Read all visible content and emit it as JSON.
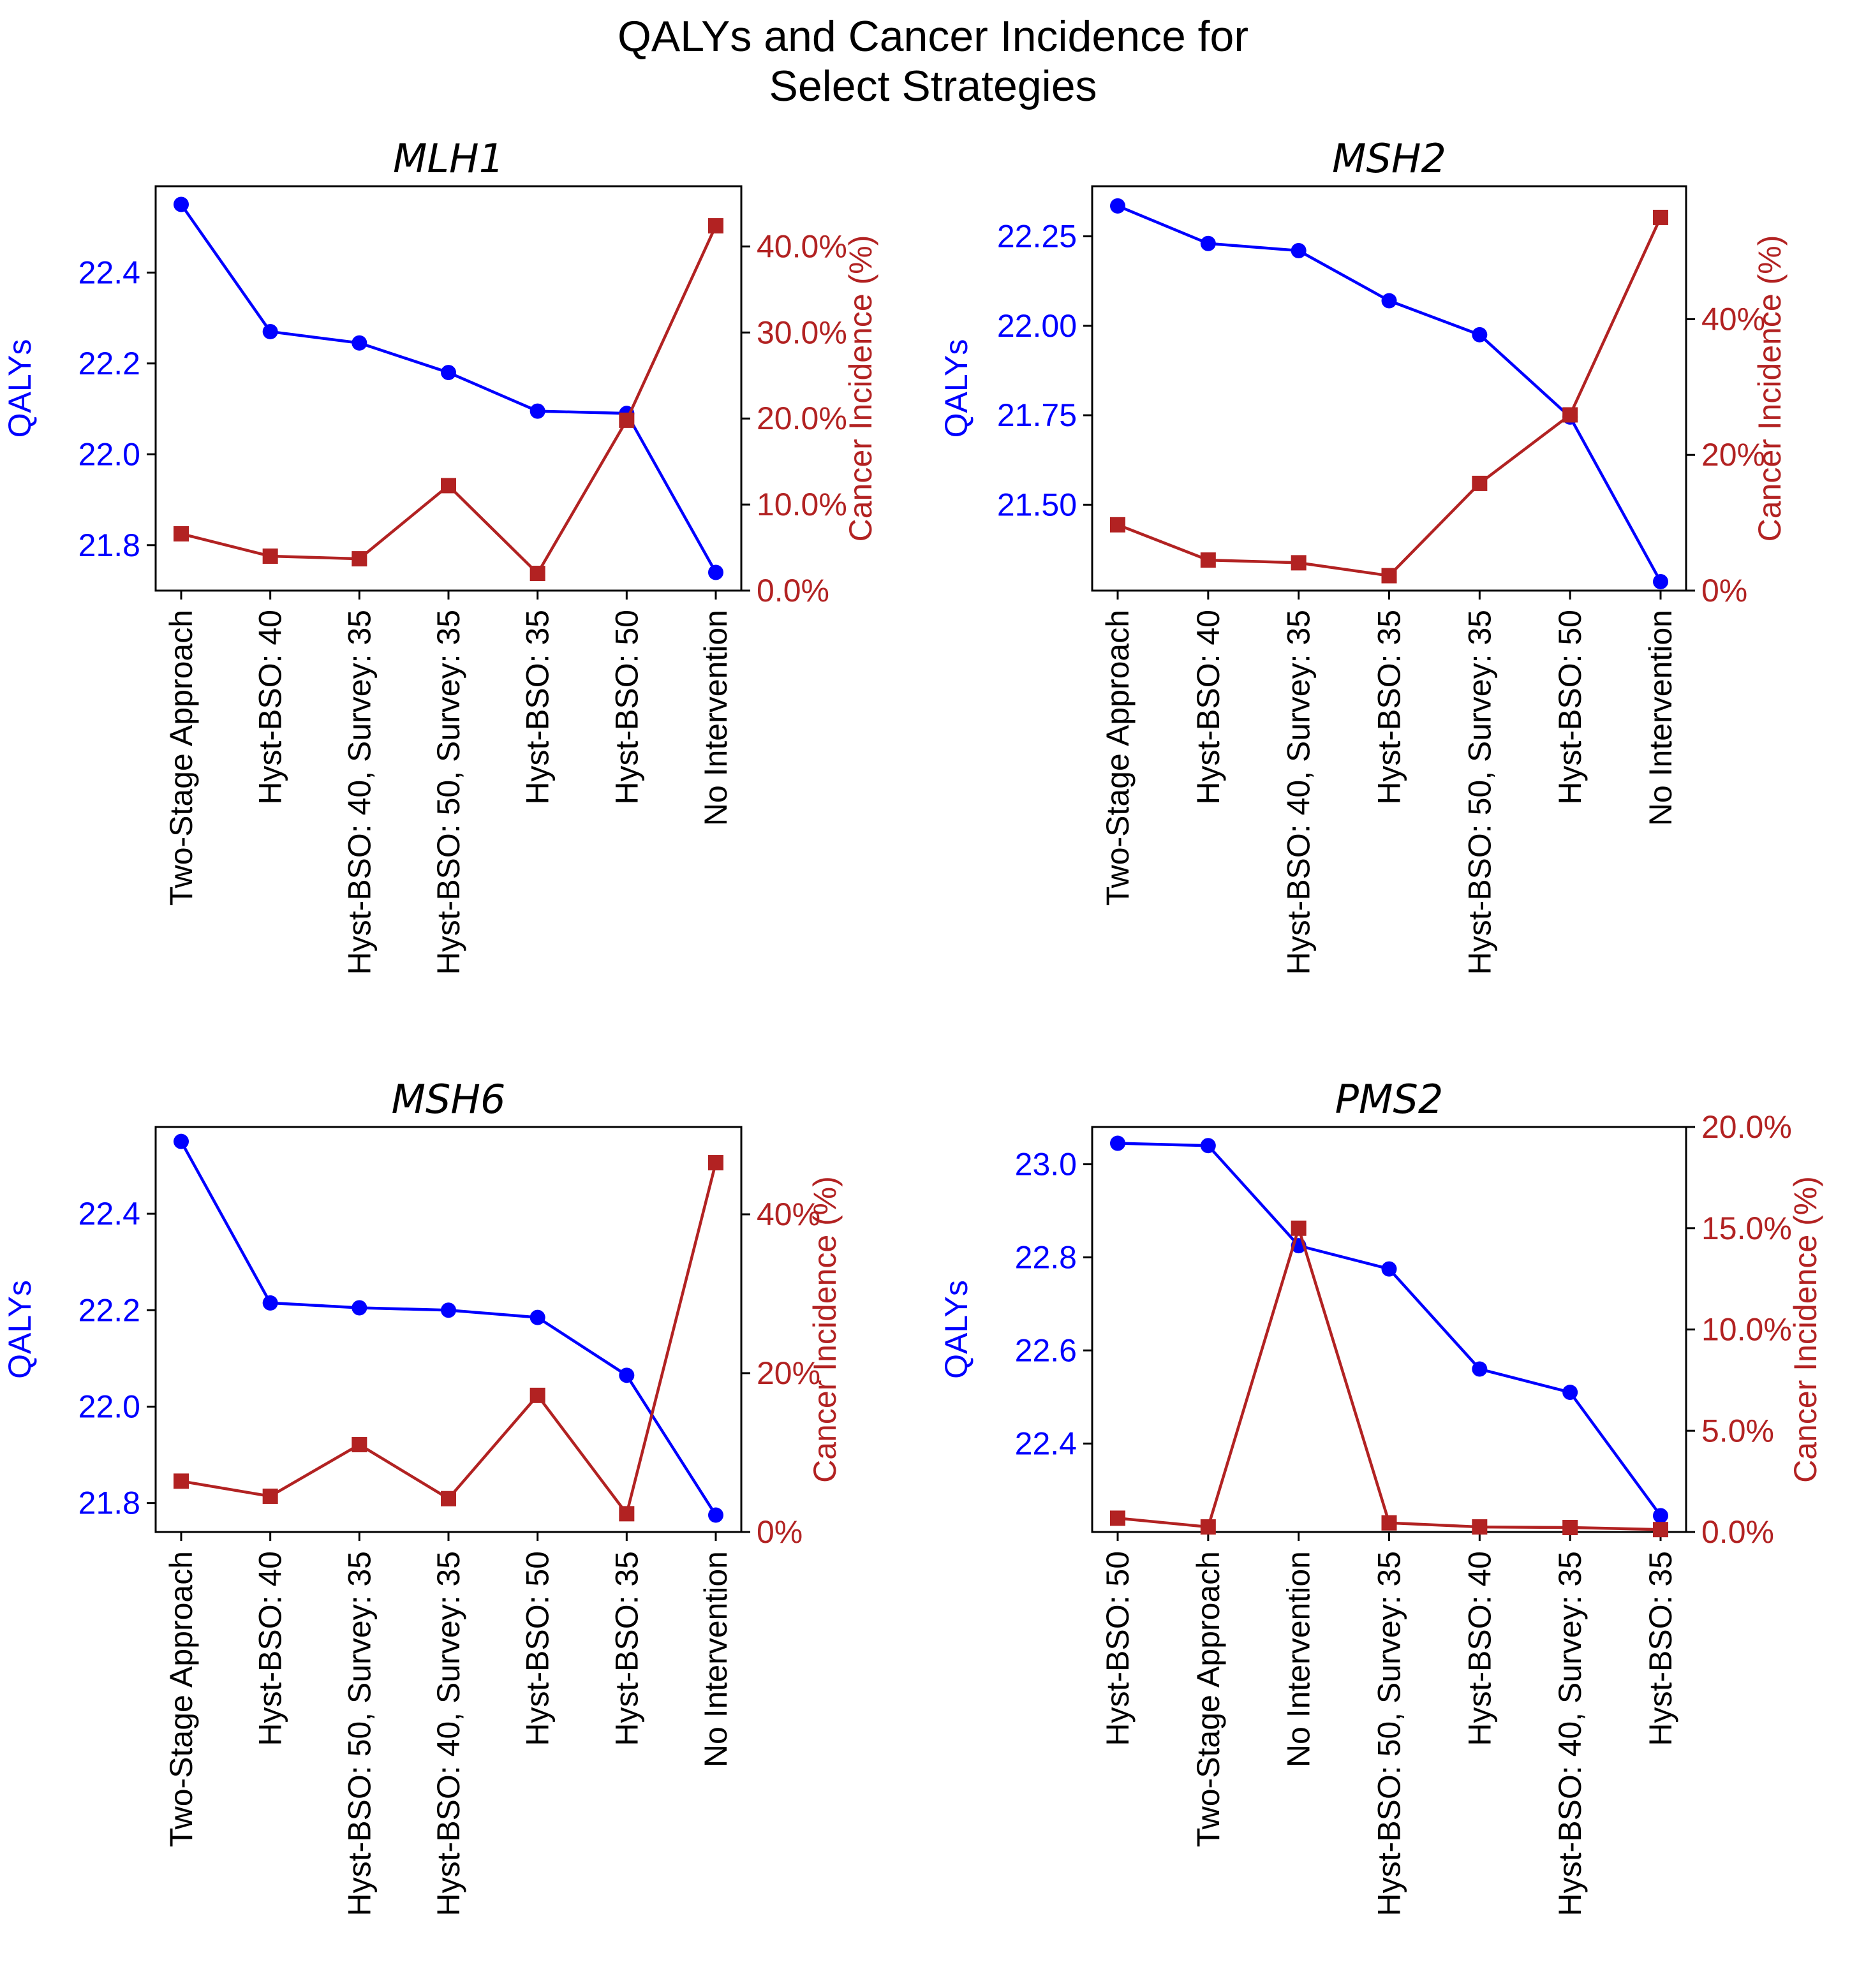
{
  "figure": {
    "title_line1": "QALYs and Cancer Incidence for",
    "title_line2": "Select Strategies"
  },
  "colors": {
    "qaly": "#0000ff",
    "cancer": "#b22222",
    "axis": "#000000"
  },
  "chart_data": [
    {
      "type": "line",
      "title": "MLH1",
      "categories": [
        "Two-Stage Approach",
        "Hyst-BSO: 40",
        "Hyst-BSO: 40, Survey: 35",
        "Hyst-BSO: 50, Survey: 35",
        "Hyst-BSO: 35",
        "Hyst-BSO: 50",
        "No Intervention"
      ],
      "ylabel_left": "QALYs",
      "ylabel_right": "Cancer Incidence (%)",
      "ylim_left": [
        21.7,
        22.59
      ],
      "ylim_right": [
        0,
        0.47
      ],
      "yticks_left": [
        21.8,
        22.0,
        22.2,
        22.4
      ],
      "yticks_left_labels": [
        "21.8",
        "22.0",
        "22.2",
        "22.4"
      ],
      "yticks_right": [
        0,
        0.1,
        0.2,
        0.3,
        0.4
      ],
      "yticks_right_labels": [
        "0.0%",
        "10.0%",
        "20.0%",
        "30.0%",
        "40.0%"
      ],
      "series": [
        {
          "name": "QALYs",
          "axis": "left",
          "marker": "circle",
          "values": [
            22.55,
            22.27,
            22.245,
            22.18,
            22.095,
            22.09,
            21.74
          ]
        },
        {
          "name": "Cancer Incidence (%)",
          "axis": "right",
          "marker": "square",
          "values": [
            0.066,
            0.04,
            0.037,
            0.122,
            0.02,
            0.198,
            0.424
          ]
        }
      ]
    },
    {
      "type": "line",
      "title": "MSH2",
      "categories": [
        "Two-Stage Approach",
        "Hyst-BSO: 40",
        "Hyst-BSO: 40, Survey: 35",
        "Hyst-BSO: 35",
        "Hyst-BSO: 50, Survey: 35",
        "Hyst-BSO: 50",
        "No Intervention"
      ],
      "ylabel_left": "QALYs",
      "ylabel_right": "Cancer Incidence (%)",
      "ylim_left": [
        21.26,
        22.39
      ],
      "ylim_right": [
        0,
        0.596
      ],
      "yticks_left": [
        21.5,
        21.75,
        22.0,
        22.25
      ],
      "yticks_left_labels": [
        "21.50",
        "21.75",
        "22.00",
        "22.25"
      ],
      "yticks_right": [
        0,
        0.2,
        0.4
      ],
      "yticks_right_labels": [
        "0%",
        "20%",
        "40%"
      ],
      "series": [
        {
          "name": "QALYs",
          "axis": "left",
          "marker": "circle",
          "values": [
            22.335,
            22.23,
            22.21,
            22.07,
            21.975,
            21.745,
            21.285
          ]
        },
        {
          "name": "Cancer Incidence (%)",
          "axis": "right",
          "marker": "square",
          "values": [
            0.097,
            0.045,
            0.041,
            0.022,
            0.158,
            0.259,
            0.55
          ]
        }
      ]
    },
    {
      "type": "line",
      "title": "MSH6",
      "categories": [
        "Two-Stage Approach",
        "Hyst-BSO: 40",
        "Hyst-BSO: 50, Survey: 35",
        "Hyst-BSO: 40, Survey: 35",
        "Hyst-BSO: 50",
        "Hyst-BSO: 35",
        "No Intervention"
      ],
      "ylabel_left": "QALYs",
      "ylabel_right": "Cancer Incidence (%)",
      "ylim_left": [
        21.74,
        22.58
      ],
      "ylim_right": [
        0,
        0.51
      ],
      "yticks_left": [
        21.8,
        22.0,
        22.2,
        22.4
      ],
      "yticks_left_labels": [
        "21.8",
        "22.0",
        "22.2",
        "22.4"
      ],
      "yticks_right": [
        0,
        0.2,
        0.4
      ],
      "yticks_right_labels": [
        "0%",
        "20%",
        "40%"
      ],
      "series": [
        {
          "name": "QALYs",
          "axis": "left",
          "marker": "circle",
          "values": [
            22.55,
            22.215,
            22.205,
            22.2,
            22.185,
            22.065,
            21.775
          ]
        },
        {
          "name": "Cancer Incidence (%)",
          "axis": "right",
          "marker": "square",
          "values": [
            0.064,
            0.045,
            0.11,
            0.042,
            0.172,
            0.023,
            0.465
          ]
        }
      ]
    },
    {
      "type": "line",
      "title": "PMS2",
      "categories": [
        "Hyst-BSO: 50",
        "Two-Stage Approach",
        "No Intervention",
        "Hyst-BSO: 50, Survey: 35",
        "Hyst-BSO: 40",
        "Hyst-BSO: 40, Survey: 35",
        "Hyst-BSO: 35"
      ],
      "ylabel_left": "QALYs",
      "ylabel_right": "Cancer Incidence (%)",
      "ylim_left": [
        22.21,
        23.08
      ],
      "ylim_right": [
        0,
        0.2
      ],
      "yticks_left": [
        22.4,
        22.6,
        22.8,
        23.0
      ],
      "yticks_left_labels": [
        "22.4",
        "22.6",
        "22.8",
        "23.0"
      ],
      "yticks_right": [
        0,
        0.05,
        0.1,
        0.15,
        0.2
      ],
      "yticks_right_labels": [
        "0.0%",
        "5.0%",
        "10.0%",
        "15.0%",
        "20.0%"
      ],
      "series": [
        {
          "name": "QALYs",
          "axis": "left",
          "marker": "circle",
          "values": [
            23.045,
            23.04,
            22.825,
            22.775,
            22.56,
            22.51,
            22.245
          ]
        },
        {
          "name": "Cancer Incidence (%)",
          "axis": "right",
          "marker": "square",
          "values": [
            0.0068,
            0.0025,
            0.15,
            0.0045,
            0.0025,
            0.0022,
            0.0012
          ]
        }
      ]
    }
  ]
}
